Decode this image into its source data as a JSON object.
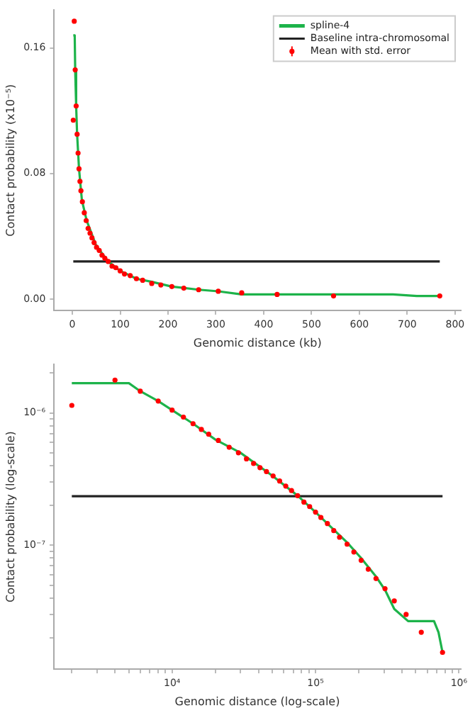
{
  "chart_data": [
    {
      "type": "line",
      "xlabel": "Genomic distance (kb)",
      "ylabel": "Contact probability (x10⁻⁵)",
      "xlim": [
        -38,
        812
      ],
      "ylim": [
        -0.0072,
        0.184
      ],
      "xticks": [
        0,
        100,
        200,
        300,
        400,
        500,
        600,
        700,
        800
      ],
      "yticks": [
        {
          "value": 0,
          "label": "0.00"
        },
        0.08,
        0.16
      ],
      "legend": "top right",
      "series": [
        {
          "name": "spline-4",
          "color": "#1db34a",
          "x": [
            2,
            5,
            6,
            8,
            10,
            14,
            20,
            30,
            50,
            75,
            100,
            134,
            166,
            208,
            264,
            305,
            354,
            442,
            670,
            720,
            768
          ],
          "values": [
            0.168,
            0.168,
            0.146,
            0.123,
            0.105,
            0.083,
            0.063,
            0.05,
            0.034,
            0.024,
            0.018,
            0.013,
            0.011,
            0.008,
            0.006,
            0.005,
            0.003,
            0.003,
            0.003,
            0.002,
            0.002
          ]
        },
        {
          "name": "Baseline intra-chromosomal",
          "color": "#222222",
          "x": [
            2,
            768
          ],
          "values": [
            0.024,
            0.024
          ]
        },
        {
          "name": "Mean with std. error",
          "type": "scatter",
          "marker": "circle",
          "color": "#ff0000",
          "x": [
            2,
            4,
            6,
            8,
            10,
            12,
            14,
            16,
            18,
            21,
            25,
            29,
            33,
            37,
            41,
            45.5,
            50.6,
            56.2,
            62,
            68,
            75,
            83,
            91,
            100,
            109,
            121,
            134,
            147,
            166,
            185,
            208,
            233,
            264,
            305,
            354,
            428,
            546,
            768
          ],
          "values": [
            0.114,
            0.177,
            0.146,
            0.123,
            0.105,
            0.093,
            0.083,
            0.075,
            0.069,
            0.062,
            0.055,
            0.05,
            0.045,
            0.042,
            0.039,
            0.036,
            0.033,
            0.031,
            0.028,
            0.026,
            0.024,
            0.021,
            0.02,
            0.018,
            0.016,
            0.015,
            0.013,
            0.012,
            0.01,
            0.009,
            0.008,
            0.007,
            0.006,
            0.005,
            0.004,
            0.003,
            0.002,
            0.002
          ]
        }
      ]
    },
    {
      "type": "line",
      "log": "xy",
      "xlabel": "Genomic distance (log-scale)",
      "ylabel": "Contact probability (log-scale)",
      "xlim": [
        1500,
        1030000
      ],
      "ylim": [
        1.16e-08,
        2.32e-06
      ],
      "xticks": [
        {
          "value": 2000,
          "label": null
        },
        {
          "value": 3000,
          "label": null
        },
        {
          "value": 4000,
          "label": null
        },
        {
          "value": 5000,
          "label": null
        },
        {
          "value": 6000,
          "label": null
        },
        {
          "value": 7000,
          "label": null
        },
        {
          "value": 8000,
          "label": null
        },
        {
          "value": 9000,
          "label": null
        },
        {
          "value": 10000,
          "label": "10⁴"
        },
        {
          "value": 20000,
          "label": null
        },
        {
          "value": 30000,
          "label": null
        },
        {
          "value": 40000,
          "label": null
        },
        {
          "value": 50000,
          "label": null
        },
        {
          "value": 60000,
          "label": null
        },
        {
          "value": 70000,
          "label": null
        },
        {
          "value": 80000,
          "label": null
        },
        {
          "value": 90000,
          "label": null
        },
        {
          "value": 100000,
          "label": "10⁵"
        },
        {
          "value": 200000,
          "label": null
        },
        {
          "value": 300000,
          "label": null
        },
        {
          "value": 400000,
          "label": null
        },
        {
          "value": 500000,
          "label": null
        },
        {
          "value": 600000,
          "label": null
        },
        {
          "value": 700000,
          "label": null
        },
        {
          "value": 800000,
          "label": null
        },
        {
          "value": 900000,
          "label": null
        },
        {
          "value": 1000000,
          "label": "10⁶"
        }
      ],
      "yticks": [
        {
          "value": 2e-08,
          "label": null
        },
        {
          "value": 3e-08,
          "label": null
        },
        {
          "value": 4e-08,
          "label": null
        },
        {
          "value": 5e-08,
          "label": null
        },
        {
          "value": 6e-08,
          "label": null
        },
        {
          "value": 7e-08,
          "label": null
        },
        {
          "value": 8e-08,
          "label": null
        },
        {
          "value": 9e-08,
          "label": null
        },
        {
          "value": 1e-07,
          "label": "10⁻⁷"
        },
        {
          "value": 2e-07,
          "label": null
        },
        {
          "value": 3e-07,
          "label": null
        },
        {
          "value": 4e-07,
          "label": null
        },
        {
          "value": 5e-07,
          "label": null
        },
        {
          "value": 6e-07,
          "label": null
        },
        {
          "value": 7e-07,
          "label": null
        },
        {
          "value": 8e-07,
          "label": null
        },
        {
          "value": 9e-07,
          "label": null
        },
        {
          "value": 1e-06,
          "label": "10⁻⁶"
        },
        {
          "value": 2e-06,
          "label": null
        }
      ],
      "series": [
        {
          "color": "#1db34a",
          "x": [
            2000,
            5000,
            6000,
            8000,
            10000,
            14000,
            20000,
            30000,
            50000,
            75000,
            100000,
            134000,
            166000,
            208000,
            264000,
            305000,
            354000,
            442000,
            670000,
            720000,
            768000
          ],
          "values": [
            1.68e-06,
            1.68e-06,
            1.46e-06,
            1.23e-06,
            1.05e-06,
            8.3e-07,
            6.3e-07,
            5e-07,
            3.35e-07,
            2.37e-07,
            1.78e-07,
            1.31e-07,
            1.05e-07,
            8e-08,
            5.8e-08,
            4.6e-08,
            3.3e-08,
            2.67e-08,
            2.67e-08,
            2.2e-08,
            1.55e-08
          ]
        },
        {
          "color": "#222222",
          "x": [
            2000,
            768000
          ],
          "values": [
            2.35e-07,
            2.35e-07
          ]
        },
        {
          "type": "scatter",
          "marker": "circle",
          "color": "#ff0000",
          "x": [
            2000,
            4000,
            6000,
            8000,
            10000,
            12000,
            14000,
            16000,
            18000,
            21000,
            25000,
            29000,
            33000,
            37000,
            41000,
            45500,
            50600,
            56200,
            62000,
            68000,
            75000,
            83000,
            91000,
            100000,
            109000,
            121000,
            134000,
            147000,
            166000,
            185000,
            208000,
            233000,
            264000,
            305000,
            354000,
            428000,
            546000,
            768000
          ],
          "values": [
            1.14e-06,
            1.77e-06,
            1.46e-06,
            1.23e-06,
            1.05e-06,
            9.3e-07,
            8.3e-07,
            7.5e-07,
            6.9e-07,
            6.2e-07,
            5.5e-07,
            5e-07,
            4.5e-07,
            4.15e-07,
            3.86e-07,
            3.6e-07,
            3.34e-07,
            3.06e-07,
            2.8e-07,
            2.59e-07,
            2.37e-07,
            2.12e-07,
            1.96e-07,
            1.78e-07,
            1.62e-07,
            1.46e-07,
            1.29e-07,
            1.15e-07,
            1.02e-07,
            8.9e-08,
            7.7e-08,
            6.6e-08,
            5.6e-08,
            4.7e-08,
            3.8e-08,
            3e-08,
            2.2e-08,
            1.55e-08
          ]
        }
      ]
    }
  ]
}
